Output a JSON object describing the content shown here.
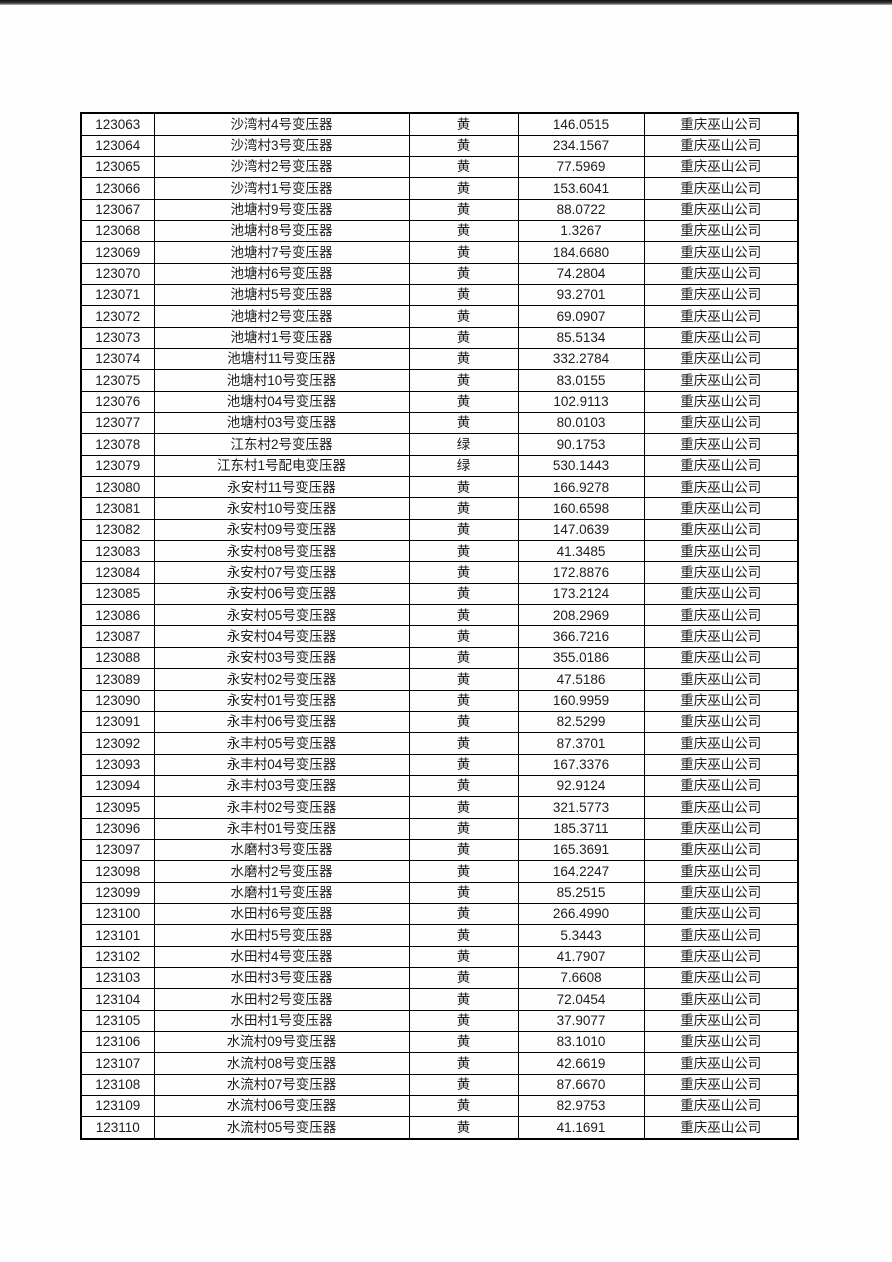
{
  "page": {
    "background_color": "#fcfbfb",
    "top_edge_color": "#1a1a1a",
    "table_border_color": "#000000",
    "text_color": "#1c1c1c"
  },
  "table": {
    "column_keys": [
      "id",
      "name",
      "color",
      "value",
      "company"
    ],
    "rows": [
      {
        "id": "123063",
        "name": "沙湾村4号变压器",
        "color": "黄",
        "value": "146.0515",
        "company": "重庆巫山公司"
      },
      {
        "id": "123064",
        "name": "沙湾村3号变压器",
        "color": "黄",
        "value": "234.1567",
        "company": "重庆巫山公司"
      },
      {
        "id": "123065",
        "name": "沙湾村2号变压器",
        "color": "黄",
        "value": "77.5969",
        "company": "重庆巫山公司"
      },
      {
        "id": "123066",
        "name": "沙湾村1号变压器",
        "color": "黄",
        "value": "153.6041",
        "company": "重庆巫山公司"
      },
      {
        "id": "123067",
        "name": "池塘村9号变压器",
        "color": "黄",
        "value": "88.0722",
        "company": "重庆巫山公司"
      },
      {
        "id": "123068",
        "name": "池塘村8号变压器",
        "color": "黄",
        "value": "1.3267",
        "company": "重庆巫山公司"
      },
      {
        "id": "123069",
        "name": "池塘村7号变压器",
        "color": "黄",
        "value": "184.6680",
        "company": "重庆巫山公司"
      },
      {
        "id": "123070",
        "name": "池塘村6号变压器",
        "color": "黄",
        "value": "74.2804",
        "company": "重庆巫山公司"
      },
      {
        "id": "123071",
        "name": "池塘村5号变压器",
        "color": "黄",
        "value": "93.2701",
        "company": "重庆巫山公司"
      },
      {
        "id": "123072",
        "name": "池塘村2号变压器",
        "color": "黄",
        "value": "69.0907",
        "company": "重庆巫山公司"
      },
      {
        "id": "123073",
        "name": "池塘村1号变压器",
        "color": "黄",
        "value": "85.5134",
        "company": "重庆巫山公司"
      },
      {
        "id": "123074",
        "name": "池塘村11号变压器",
        "color": "黄",
        "value": "332.2784",
        "company": "重庆巫山公司"
      },
      {
        "id": "123075",
        "name": "池塘村10号变压器",
        "color": "黄",
        "value": "83.0155",
        "company": "重庆巫山公司"
      },
      {
        "id": "123076",
        "name": "池塘村04号变压器",
        "color": "黄",
        "value": "102.9113",
        "company": "重庆巫山公司"
      },
      {
        "id": "123077",
        "name": "池塘村03号变压器",
        "color": "黄",
        "value": "80.0103",
        "company": "重庆巫山公司"
      },
      {
        "id": "123078",
        "name": "江东村2号变压器",
        "color": "绿",
        "value": "90.1753",
        "company": "重庆巫山公司"
      },
      {
        "id": "123079",
        "name": "江东村1号配电变压器",
        "color": "绿",
        "value": "530.1443",
        "company": "重庆巫山公司"
      },
      {
        "id": "123080",
        "name": "永安村11号变压器",
        "color": "黄",
        "value": "166.9278",
        "company": "重庆巫山公司"
      },
      {
        "id": "123081",
        "name": "永安村10号变压器",
        "color": "黄",
        "value": "160.6598",
        "company": "重庆巫山公司"
      },
      {
        "id": "123082",
        "name": "永安村09号变压器",
        "color": "黄",
        "value": "147.0639",
        "company": "重庆巫山公司"
      },
      {
        "id": "123083",
        "name": "永安村08号变压器",
        "color": "黄",
        "value": "41.3485",
        "company": "重庆巫山公司"
      },
      {
        "id": "123084",
        "name": "永安村07号变压器",
        "color": "黄",
        "value": "172.8876",
        "company": "重庆巫山公司"
      },
      {
        "id": "123085",
        "name": "永安村06号变压器",
        "color": "黄",
        "value": "173.2124",
        "company": "重庆巫山公司"
      },
      {
        "id": "123086",
        "name": "永安村05号变压器",
        "color": "黄",
        "value": "208.2969",
        "company": "重庆巫山公司"
      },
      {
        "id": "123087",
        "name": "永安村04号变压器",
        "color": "黄",
        "value": "366.7216",
        "company": "重庆巫山公司"
      },
      {
        "id": "123088",
        "name": "永安村03号变压器",
        "color": "黄",
        "value": "355.0186",
        "company": "重庆巫山公司"
      },
      {
        "id": "123089",
        "name": "永安村02号变压器",
        "color": "黄",
        "value": "47.5186",
        "company": "重庆巫山公司"
      },
      {
        "id": "123090",
        "name": "永安村01号变压器",
        "color": "黄",
        "value": "160.9959",
        "company": "重庆巫山公司"
      },
      {
        "id": "123091",
        "name": "永丰村06号变压器",
        "color": "黄",
        "value": "82.5299",
        "company": "重庆巫山公司"
      },
      {
        "id": "123092",
        "name": "永丰村05号变压器",
        "color": "黄",
        "value": "87.3701",
        "company": "重庆巫山公司"
      },
      {
        "id": "123093",
        "name": "永丰村04号变压器",
        "color": "黄",
        "value": "167.3376",
        "company": "重庆巫山公司"
      },
      {
        "id": "123094",
        "name": "永丰村03号变压器",
        "color": "黄",
        "value": "92.9124",
        "company": "重庆巫山公司"
      },
      {
        "id": "123095",
        "name": "永丰村02号变压器",
        "color": "黄",
        "value": "321.5773",
        "company": "重庆巫山公司"
      },
      {
        "id": "123096",
        "name": "永丰村01号变压器",
        "color": "黄",
        "value": "185.3711",
        "company": "重庆巫山公司"
      },
      {
        "id": "123097",
        "name": "水磨村3号变压器",
        "color": "黄",
        "value": "165.3691",
        "company": "重庆巫山公司"
      },
      {
        "id": "123098",
        "name": "水磨村2号变压器",
        "color": "黄",
        "value": "164.2247",
        "company": "重庆巫山公司"
      },
      {
        "id": "123099",
        "name": "水磨村1号变压器",
        "color": "黄",
        "value": "85.2515",
        "company": "重庆巫山公司"
      },
      {
        "id": "123100",
        "name": "水田村6号变压器",
        "color": "黄",
        "value": "266.4990",
        "company": "重庆巫山公司"
      },
      {
        "id": "123101",
        "name": "水田村5号变压器",
        "color": "黄",
        "value": "5.3443",
        "company": "重庆巫山公司"
      },
      {
        "id": "123102",
        "name": "水田村4号变压器",
        "color": "黄",
        "value": "41.7907",
        "company": "重庆巫山公司"
      },
      {
        "id": "123103",
        "name": "水田村3号变压器",
        "color": "黄",
        "value": "7.6608",
        "company": "重庆巫山公司"
      },
      {
        "id": "123104",
        "name": "水田村2号变压器",
        "color": "黄",
        "value": "72.0454",
        "company": "重庆巫山公司"
      },
      {
        "id": "123105",
        "name": "水田村1号变压器",
        "color": "黄",
        "value": "37.9077",
        "company": "重庆巫山公司"
      },
      {
        "id": "123106",
        "name": "水流村09号变压器",
        "color": "黄",
        "value": "83.1010",
        "company": "重庆巫山公司"
      },
      {
        "id": "123107",
        "name": "水流村08号变压器",
        "color": "黄",
        "value": "42.6619",
        "company": "重庆巫山公司"
      },
      {
        "id": "123108",
        "name": "水流村07号变压器",
        "color": "黄",
        "value": "87.6670",
        "company": "重庆巫山公司"
      },
      {
        "id": "123109",
        "name": "水流村06号变压器",
        "color": "黄",
        "value": "82.9753",
        "company": "重庆巫山公司"
      },
      {
        "id": "123110",
        "name": "水流村05号变压器",
        "color": "黄",
        "value": "41.1691",
        "company": "重庆巫山公司"
      }
    ]
  }
}
